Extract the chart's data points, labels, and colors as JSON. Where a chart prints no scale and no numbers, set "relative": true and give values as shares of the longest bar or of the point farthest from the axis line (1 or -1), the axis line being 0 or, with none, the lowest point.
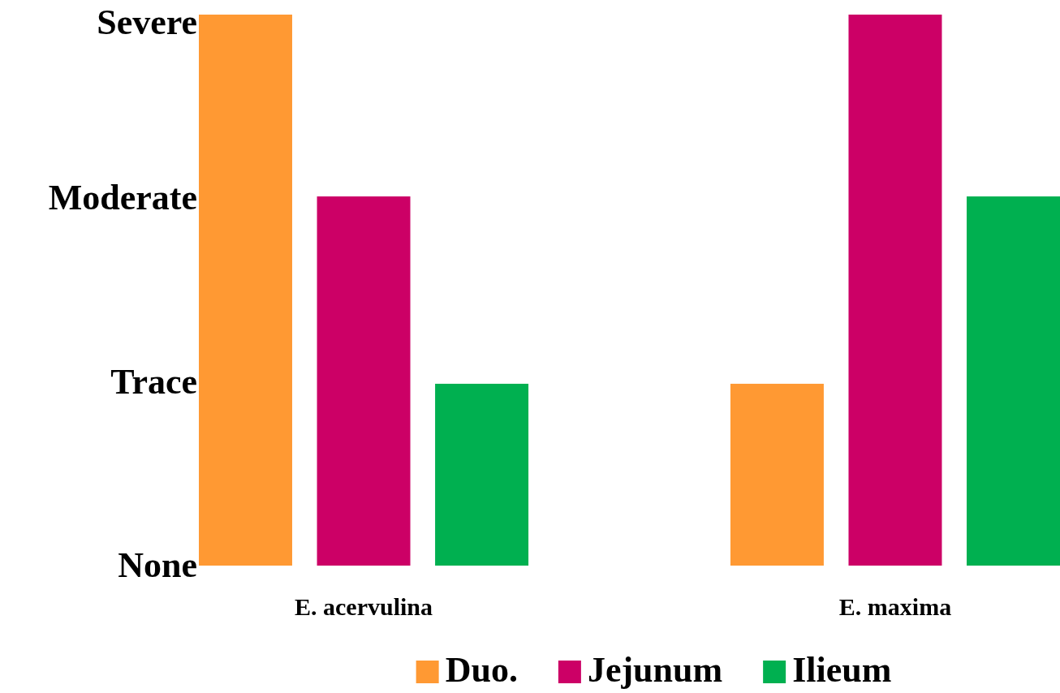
{
  "chart_data": {
    "type": "bar",
    "categories": [
      "E. acervulina",
      "E. maxima"
    ],
    "series": [
      {
        "name": "Duo.",
        "color": "#ff9933",
        "values": [
          1,
          0.33
        ]
      },
      {
        "name": "Jejunum",
        "color": "#cc0066",
        "values": [
          0.67,
          1
        ]
      },
      {
        "name": "Ilieum",
        "color": "#00b050",
        "values": [
          0.33,
          0.67
        ]
      }
    ],
    "relative": true,
    "annotations": [
      "None",
      "Trace",
      "Moderate",
      "Severe"
    ],
    "legend": "bottom"
  }
}
